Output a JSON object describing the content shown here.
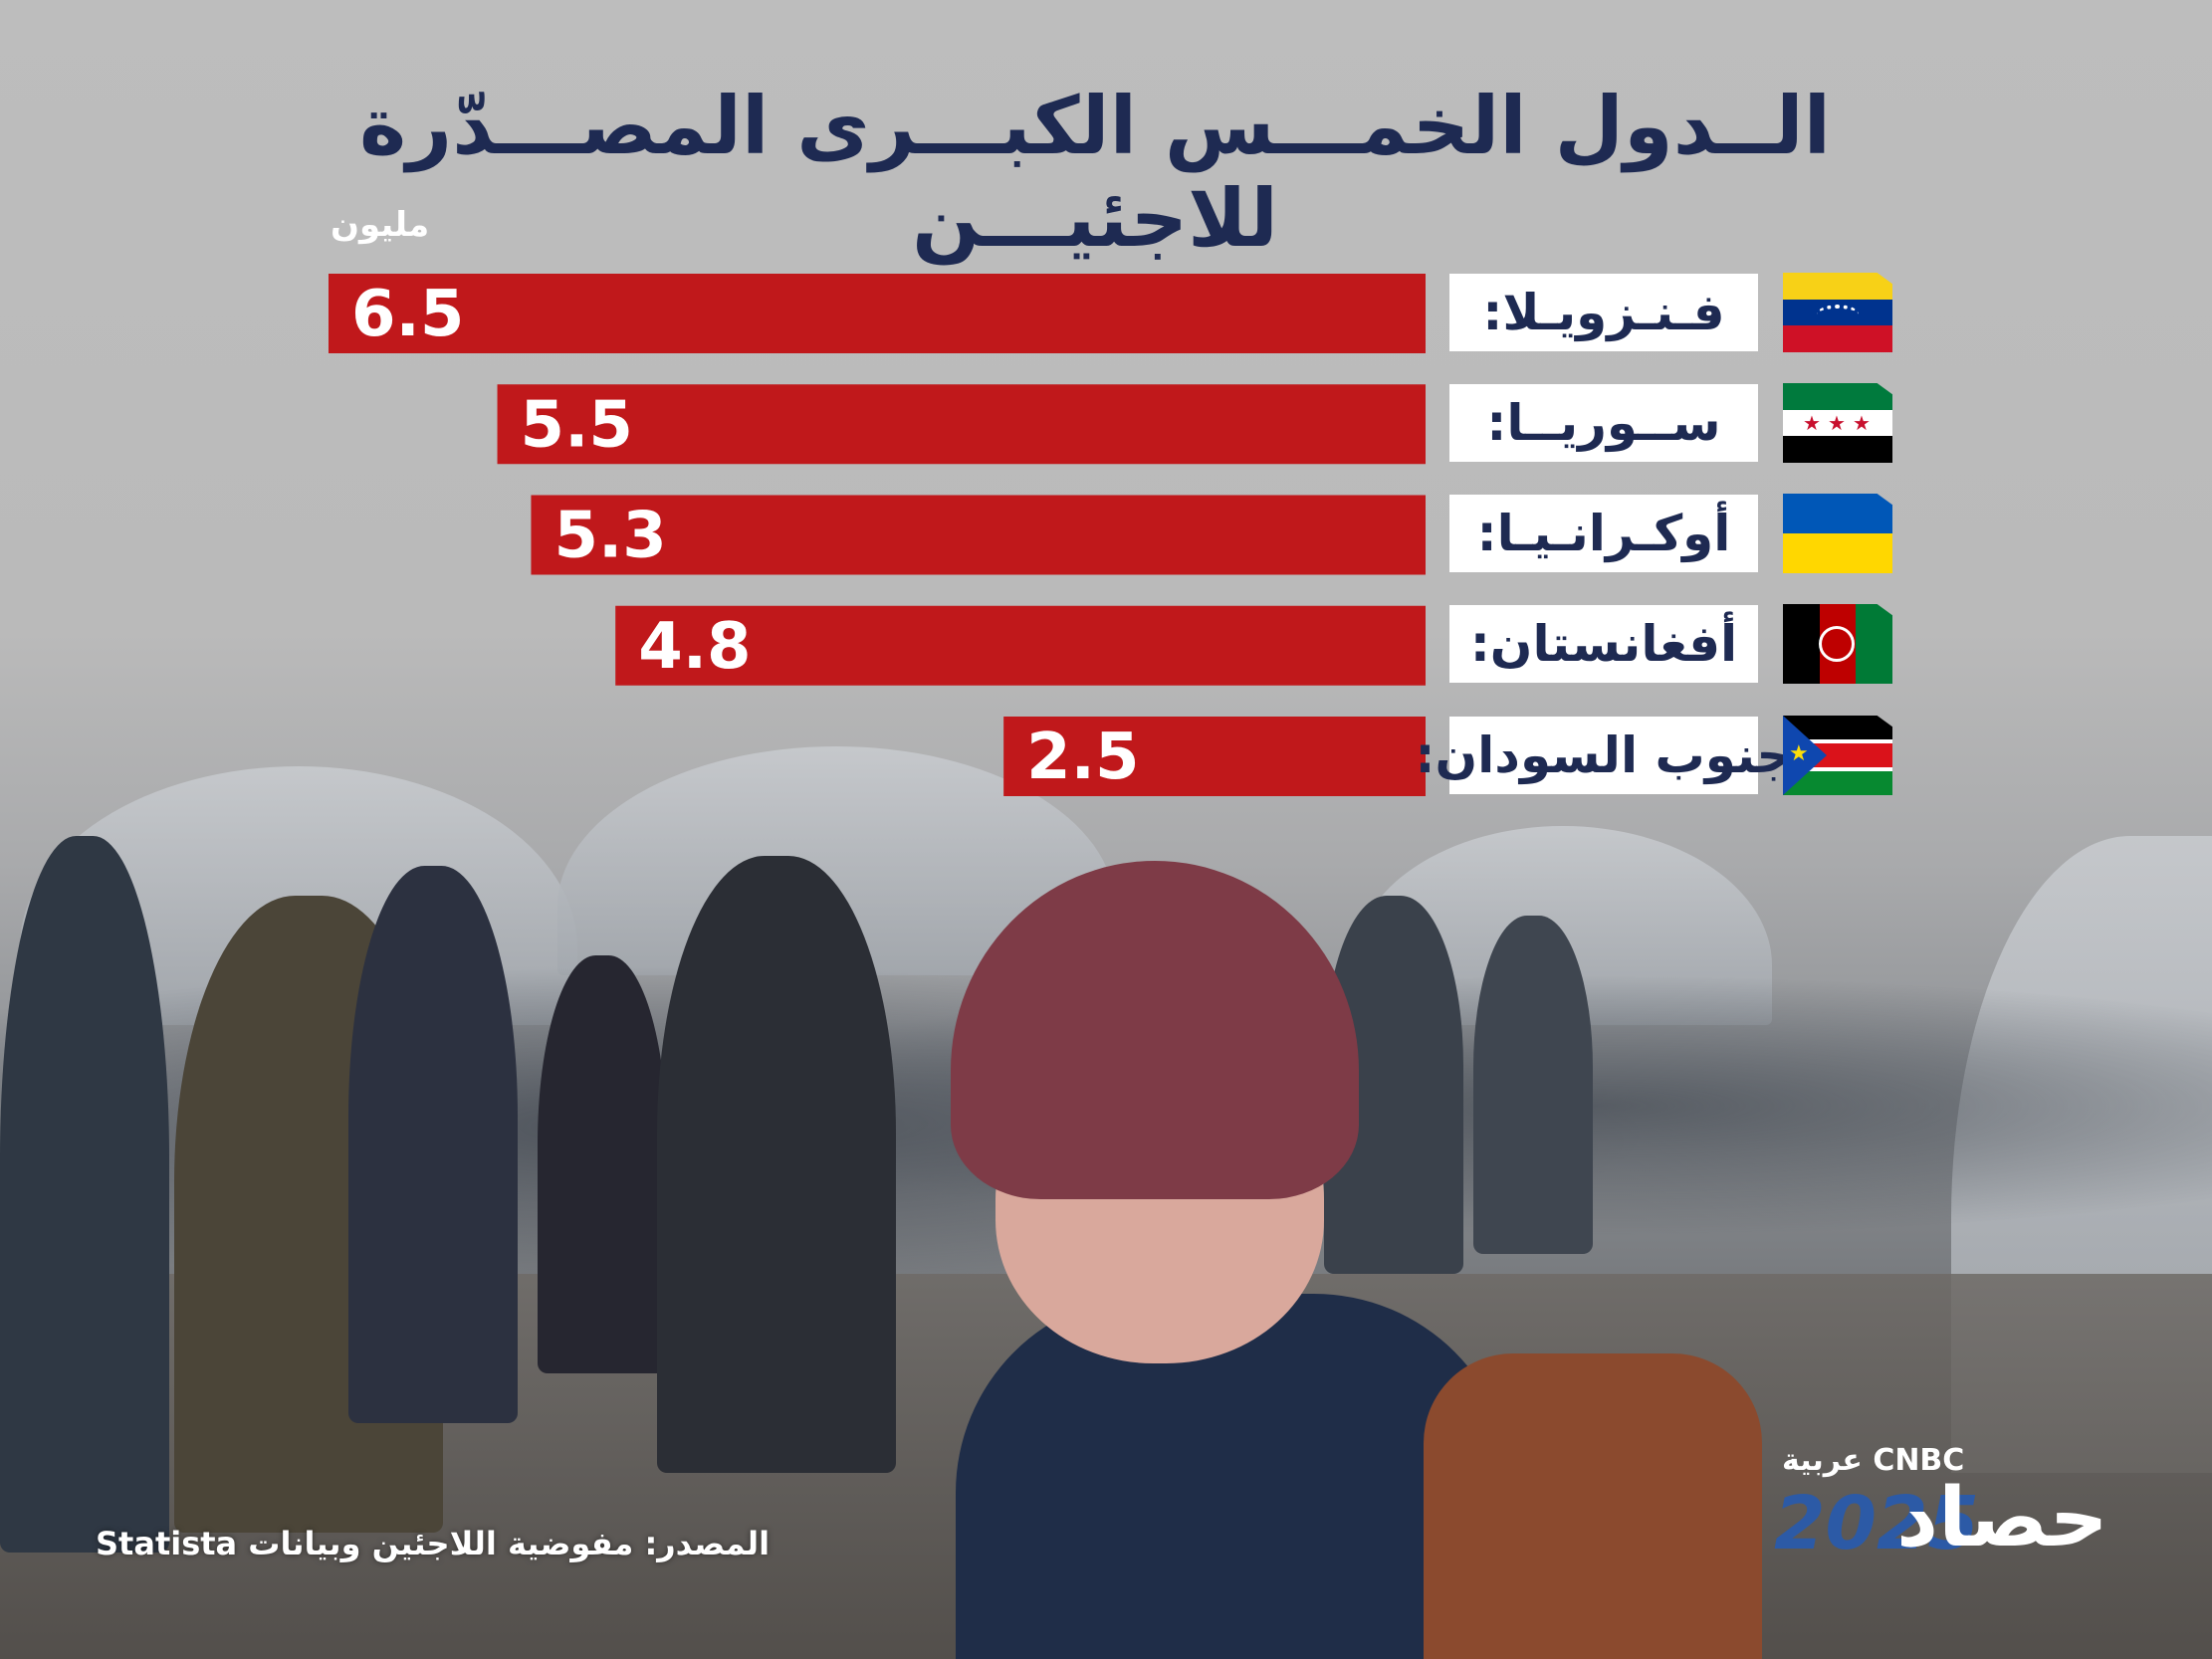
{
  "title": "الــدول الخمـــس الكبـــرى المصـــدّرة للاجئيـــن",
  "unit_label": "مليون",
  "colors": {
    "bar": "#c0181b",
    "label_text": "#1e2a52",
    "label_bg": "#ffffff",
    "value_text": "#ffffff"
  },
  "chart_data": {
    "type": "bar",
    "orientation": "horizontal",
    "title": "الــدول الخمـــس الكبـــرى المصـــدّرة للاجئيـــن",
    "unit": "مليون",
    "categories": [
      "فـنـزويـلا:",
      "ســوريــا:",
      "أوكـرانـيـا:",
      "أفغانستان:",
      "جنوب السودان:"
    ],
    "values": [
      6.5,
      5.5,
      5.3,
      4.8,
      2.5
    ],
    "value_labels": [
      "6.5",
      "5.5",
      "5.3",
      "4.8",
      "2.5"
    ],
    "flags": [
      "venezuela-flag-icon",
      "syria-flag-icon",
      "ukraine-flag-icon",
      "afghanistan-flag-icon",
      "south-sudan-flag-icon"
    ],
    "xlim": [
      0,
      6.5
    ],
    "grid": false,
    "legend": "none"
  },
  "source": "المصدر: مفوضية اللاجئين وبيانات Statista",
  "brand": {
    "network": "CNBC عربية",
    "year": "2025",
    "word": "حصاد"
  }
}
